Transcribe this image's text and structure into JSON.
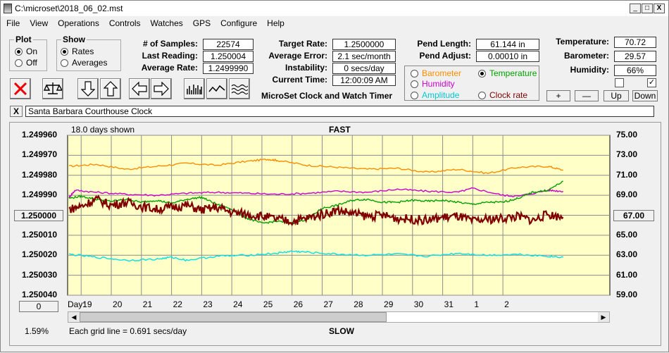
{
  "window": {
    "title": "C:\\microset\\2018_06_02.mst",
    "min": "_",
    "max": "□",
    "close": "X"
  },
  "menu": [
    "File",
    "View",
    "Operations",
    "Controls",
    "Watches",
    "GPS",
    "Configure",
    "Help"
  ],
  "plot_group": {
    "title": "Plot",
    "options": [
      {
        "label": "On",
        "selected": true
      },
      {
        "label": "Off",
        "selected": false
      }
    ]
  },
  "show_group": {
    "title": "Show",
    "options": [
      {
        "label": "Rates",
        "selected": true
      },
      {
        "label": "Averages",
        "selected": false
      }
    ]
  },
  "stats": {
    "samples_label": "# of Samples:",
    "samples": "22574",
    "last_label": "Last Reading:",
    "last": "1.250004",
    "avg_label": "Average Rate:",
    "avg": "1.2499990",
    "target_label": "Target Rate:",
    "target": "1.2500000",
    "err_label": "Average Error:",
    "err": "2.1 sec/month",
    "instab_label": "Instability:",
    "instab": "0 secs/day",
    "time_label": "Current Time:",
    "time": "12:00:09 AM",
    "pend_len_label": "Pend Length:",
    "pend_len": "61.144 in",
    "pend_adj_label": "Pend Adjust:",
    "pend_adj": "0.00010 in",
    "temp_label": "Temperature:",
    "temp": "70.72",
    "baro_label": "Barometer:",
    "baro": "29.57",
    "hum_label": "Humidity:",
    "hum": "66%"
  },
  "app_name": "MicroSet Clock and Watch Timer",
  "series_select": {
    "barometer": {
      "label": "Barometer",
      "color": "#ff8c00",
      "selected": false
    },
    "temperature": {
      "label": "Temperature",
      "color": "#00a000",
      "selected": true
    },
    "humidity": {
      "label": "Humidity",
      "color": "#cc00cc",
      "selected": false
    },
    "amplitude": {
      "label": "Amplitude",
      "color": "#00c8d0",
      "selected": false
    },
    "clockrate": {
      "label": "Clock rate",
      "color": "#800000",
      "selected": false
    }
  },
  "scale_buttons": {
    "plus": "+",
    "minus": "—",
    "up": "Up",
    "down": "Down"
  },
  "checks": [
    {
      "checked": false
    },
    {
      "checked": true
    }
  ],
  "clock_name": "Santa Barbara Courthouse Clock",
  "clear_btn": "X",
  "chart_header": {
    "days_shown": "18.0 days shown",
    "top": "FAST",
    "bottom": "SLOW",
    "grid_note": "Each grid line = 0.691 secs/day",
    "pct": "1.59%",
    "day_label": "Day:",
    "left_btn": "0",
    "center_left": "1.250000",
    "center_right": "67.00"
  },
  "chart_data": {
    "type": "line",
    "left_axis": [
      "1.249960",
      "1.249970",
      "1.249980",
      "1.249990",
      "1.250000",
      "1.250010",
      "1.250020",
      "1.250030",
      "1.250040"
    ],
    "right_axis": [
      "75.00",
      "73.00",
      "71.00",
      "69.00",
      "67.00",
      "65.00",
      "63.00",
      "61.00",
      "59.00"
    ],
    "ylim_left": [
      1.24996,
      1.25004
    ],
    "ylim_right": [
      59,
      75
    ],
    "x_days": [
      "19",
      "20",
      "21",
      "22",
      "23",
      "24",
      "25",
      "26",
      "27",
      "28",
      "29",
      "30",
      "31",
      "1",
      "2"
    ],
    "xlim": [
      18.55,
      36.55
    ],
    "series": [
      {
        "color": "#ff8c00",
        "axis": "right",
        "x": [
          18.6,
          19.5,
          20.5,
          21.5,
          22.5,
          23.5,
          24.5,
          25.2,
          25.5,
          26.5,
          27.5,
          28.5,
          29.5,
          30.5,
          31.5,
          32.5,
          33.5,
          34.5,
          35.0
        ],
        "y": [
          71.9,
          72.1,
          71.6,
          71.9,
          72.2,
          72.0,
          72.4,
          72.6,
          72.5,
          72.0,
          71.8,
          71.6,
          71.7,
          71.3,
          71.6,
          71.2,
          71.8,
          71.9,
          71.5
        ]
      },
      {
        "color": "#cc00cc",
        "axis": "right",
        "x": [
          18.6,
          18.8,
          19.5,
          20.5,
          21.5,
          22.5,
          23.5,
          24.5,
          25.5,
          26.5,
          27.5,
          28.5,
          29.5,
          30.5,
          31.5,
          32.0,
          33.0,
          33.5,
          34.5,
          35.0
        ],
        "y": [
          68.8,
          69.5,
          69.3,
          69.1,
          69.0,
          69.2,
          69.3,
          69.2,
          69.1,
          69.2,
          69.4,
          69.3,
          69.6,
          69.4,
          69.3,
          69.7,
          69.0,
          68.9,
          69.5,
          69.4
        ]
      },
      {
        "color": "#00a000",
        "axis": "right",
        "x": [
          18.6,
          19.0,
          19.5,
          20.0,
          20.5,
          21.0,
          21.5,
          22.0,
          22.5,
          23.0,
          23.5,
          24.0,
          24.5,
          25.0,
          25.5,
          26.0,
          26.5,
          27.0,
          27.5,
          28.0,
          28.5,
          29.0,
          29.5,
          30.0,
          30.5,
          31.0,
          31.5,
          32.0,
          32.5,
          33.0,
          33.5,
          34.0,
          34.5,
          35.0
        ],
        "y": [
          68.7,
          68.9,
          68.6,
          68.4,
          68.6,
          68.3,
          68.5,
          68.2,
          68.6,
          68.8,
          68.1,
          67.6,
          66.7,
          66.2,
          66.4,
          66.2,
          66.6,
          67.7,
          68.0,
          68.5,
          68.6,
          68.3,
          68.3,
          68.5,
          68.4,
          68.5,
          68.3,
          68.1,
          68.3,
          68.3,
          68.7,
          69.3,
          69.5,
          70.4
        ]
      },
      {
        "color": "#800000",
        "axis": "right",
        "x": [
          18.6,
          19.0,
          19.5,
          20.0,
          20.5,
          21.0,
          21.5,
          22.0,
          22.5,
          23.0,
          23.5,
          24.0,
          24.5,
          25.0,
          25.5,
          26.0,
          26.5,
          27.0,
          27.5,
          28.0,
          28.5,
          29.0,
          29.5,
          30.0,
          30.5,
          31.0,
          31.5,
          32.0,
          32.5,
          33.0,
          33.5,
          34.0,
          34.5,
          35.0
        ],
        "y": [
          67.6,
          67.9,
          68.6,
          68.0,
          68.3,
          67.9,
          67.6,
          67.8,
          68.0,
          67.5,
          67.8,
          67.3,
          67.1,
          66.9,
          66.6,
          66.4,
          66.7,
          67.1,
          67.5,
          67.2,
          66.9,
          67.0,
          66.7,
          66.6,
          66.5,
          66.8,
          66.9,
          66.4,
          66.6,
          66.7,
          66.9,
          66.5,
          67.1,
          66.8
        ]
      },
      {
        "color": "#00e0e8",
        "axis": "right",
        "x": [
          18.6,
          19.5,
          20.5,
          21.5,
          22.0,
          22.5,
          23.5,
          24.5,
          25.5,
          26.0,
          26.5,
          27.5,
          28.5,
          29.5,
          30.5,
          31.5,
          32.5,
          33.5,
          34.5,
          35.0
        ],
        "y": [
          63.1,
          62.8,
          62.5,
          62.6,
          62.8,
          62.5,
          62.9,
          63.0,
          63.2,
          63.4,
          63.3,
          63.1,
          63.0,
          63.1,
          62.9,
          63.2,
          63.0,
          63.1,
          62.9,
          62.8
        ]
      }
    ]
  }
}
